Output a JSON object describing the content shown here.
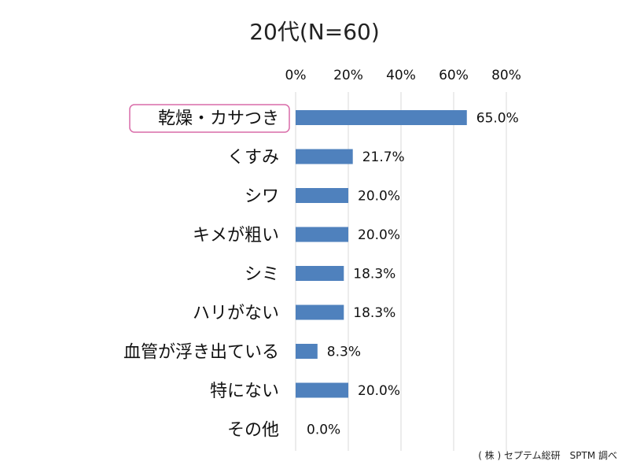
{
  "chart_data": {
    "type": "bar",
    "orientation": "horizontal",
    "title": "20代(N=60)",
    "categories": [
      "乾燥・カサつき",
      "くすみ",
      "シワ",
      "キメが粗い",
      "シミ",
      "ハリがない",
      "血管が浮き出ている",
      "特にない",
      "その他"
    ],
    "values": [
      65.0,
      21.7,
      20.0,
      20.0,
      18.3,
      18.3,
      8.3,
      20.0,
      0.0
    ],
    "value_labels": [
      "65.0%",
      "21.7%",
      "20.0%",
      "20.0%",
      "18.3%",
      "18.3%",
      "8.3%",
      "20.0%",
      "0.0%"
    ],
    "x_ticks": [
      "0%",
      "20%",
      "40%",
      "60%",
      "80%"
    ],
    "xlim": [
      0,
      80
    ],
    "x_axis_position": "top",
    "grid": true,
    "highlighted_category": "乾燥・カサつき",
    "colors": {
      "bar": "#4f81bd",
      "highlight_border": "#d96ba8",
      "grid": "#d9d9d9"
    }
  },
  "source": "( 株 ) セプテム総研　SPTM 調べ"
}
